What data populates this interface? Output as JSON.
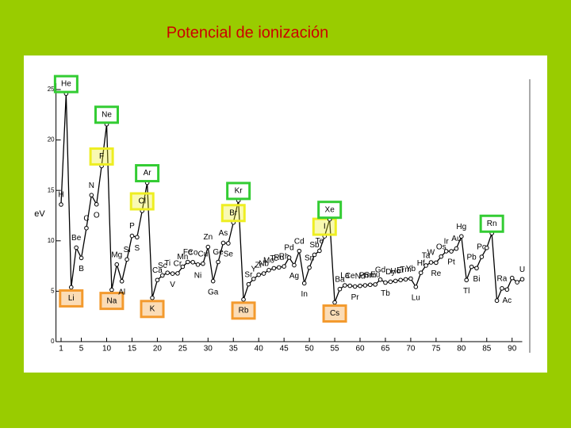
{
  "chart_data": {
    "type": "line",
    "title": "Potencial de ionización",
    "ylabel": "eV",
    "x": [
      1,
      2,
      3,
      4,
      5,
      6,
      7,
      8,
      9,
      10,
      11,
      12,
      13,
      14,
      15,
      16,
      17,
      18,
      19,
      20,
      21,
      22,
      23,
      24,
      25,
      26,
      27,
      28,
      29,
      30,
      31,
      32,
      33,
      34,
      35,
      36,
      37,
      38,
      39,
      40,
      41,
      42,
      43,
      44,
      45,
      46,
      47,
      48,
      49,
      50,
      51,
      52,
      53,
      54,
      55,
      56,
      57,
      58,
      59,
      60,
      61,
      62,
      63,
      64,
      65,
      66,
      67,
      68,
      69,
      70,
      71,
      72,
      73,
      74,
      75,
      76,
      77,
      78,
      79,
      80,
      81,
      82,
      83,
      84,
      85,
      86,
      87,
      88,
      89,
      90,
      91,
      92
    ],
    "values": [
      13.6,
      24.6,
      5.39,
      9.32,
      8.3,
      11.26,
      14.53,
      13.62,
      17.42,
      21.56,
      5.14,
      7.65,
      5.99,
      8.15,
      10.49,
      10.36,
      12.97,
      15.76,
      4.34,
      6.11,
      6.56,
      6.83,
      6.75,
      6.77,
      7.43,
      7.9,
      7.88,
      7.64,
      7.73,
      9.39,
      6.0,
      7.9,
      9.79,
      9.75,
      11.81,
      14.0,
      4.18,
      5.69,
      6.22,
      6.63,
      6.76,
      7.09,
      7.28,
      7.36,
      7.46,
      8.34,
      7.58,
      8.99,
      5.79,
      7.34,
      8.61,
      9.01,
      10.45,
      12.13,
      3.89,
      5.21,
      5.58,
      5.54,
      5.47,
      5.53,
      5.58,
      5.64,
      5.67,
      6.15,
      5.86,
      5.94,
      6.02,
      6.11,
      6.18,
      6.25,
      5.43,
      6.83,
      7.55,
      7.86,
      7.83,
      8.44,
      8.97,
      8.96,
      9.23,
      10.44,
      6.11,
      7.42,
      7.29,
      8.41,
      9.3,
      10.75,
      4.07,
      5.28,
      5.17,
      6.31,
      5.89,
      6.19
    ],
    "labels": [
      "H",
      "He",
      "Li",
      "Be",
      "B",
      "C",
      "N",
      "O",
      "F",
      "Ne",
      "Na",
      "Mg",
      "Al",
      "Si",
      "P",
      "S",
      "Cl",
      "Ar",
      "K",
      "Ca",
      "Sc",
      "Ti",
      "V",
      "Cr",
      "Mn",
      "Fe",
      "Co",
      "Ni",
      "Cu",
      "Zn",
      "Ga",
      "Ge",
      "As",
      "Se",
      "Br",
      "Kr",
      "Rb",
      "Sr",
      "Y",
      "Zr",
      "Nb",
      "Mo",
      "Tc",
      "Ru",
      "Rh",
      "Pd",
      "Ag",
      "Cd",
      "In",
      "Sn",
      "Sb",
      "Te",
      "I",
      "Xe",
      "Cs",
      "Ba",
      "La",
      "Ce",
      "Pr",
      "Nd",
      "Pm",
      "Sm",
      "Eu",
      "Gd",
      "Tb",
      "Dy",
      "Ho",
      "Er",
      "Tm",
      "Yb",
      "Lu",
      "Hf",
      "Ta",
      "W",
      "Re",
      "Os",
      "Ir",
      "Pt",
      "Au",
      "Hg",
      "Tl",
      "Pb",
      "Bi",
      "Po",
      null,
      "Rn",
      null,
      "Ra",
      "Ac",
      null,
      null,
      "U"
    ],
    "label_box_colors": [
      null,
      "#33cc33",
      "#f39a2e",
      null,
      null,
      null,
      null,
      null,
      "#eeee22",
      "#33cc33",
      "#f39a2e",
      null,
      null,
      null,
      null,
      null,
      "#eeee22",
      "#33cc33",
      "#f39a2e",
      null,
      null,
      null,
      null,
      null,
      null,
      null,
      null,
      null,
      null,
      null,
      null,
      null,
      null,
      null,
      "#eeee22",
      "#33cc33",
      "#f39a2e",
      null,
      null,
      null,
      null,
      null,
      null,
      null,
      null,
      null,
      null,
      null,
      null,
      null,
      null,
      null,
      "#eeee22",
      "#33cc33",
      "#f39a2e",
      null,
      null,
      null,
      null,
      null,
      null,
      null,
      null,
      null,
      null,
      null,
      null,
      null,
      null,
      null,
      null,
      null,
      null,
      null,
      null,
      null,
      null,
      null,
      null,
      null,
      null,
      null,
      null,
      null,
      null,
      "#33cc33",
      null,
      null,
      null,
      null,
      null,
      null
    ],
    "xlim": [
      0,
      92
    ],
    "ylim": [
      0,
      25
    ],
    "xticks": [
      1,
      5,
      10,
      15,
      20,
      25,
      30,
      35,
      40,
      45,
      50,
      55,
      60,
      65,
      70,
      75,
      80,
      85,
      90
    ],
    "yticks": [
      0,
      5,
      10,
      15,
      20,
      25
    ],
    "color": "#000000"
  }
}
